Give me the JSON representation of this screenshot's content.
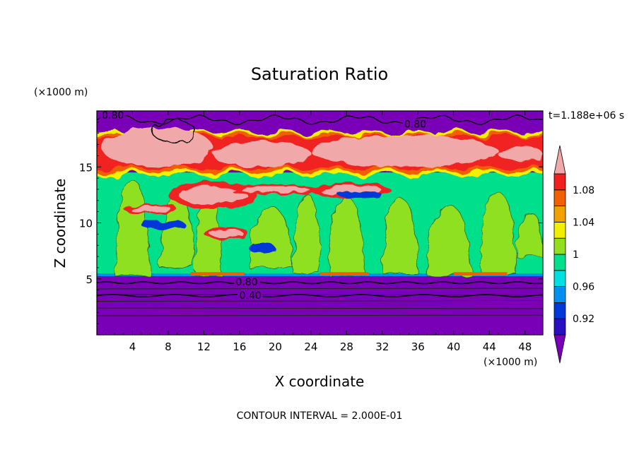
{
  "chart_data": {
    "type": "heatmap",
    "title": "Saturation Ratio",
    "xlabel": "X coordinate",
    "ylabel": "Z coordinate",
    "x_unit": "(×1000 m)",
    "y_unit": "(×1000 m)",
    "time_label": "t=1.188e+06 s",
    "footer": "CONTOUR INTERVAL = 2.000E-01",
    "xlim": [
      0,
      50
    ],
    "ylim": [
      0,
      20
    ],
    "x_ticks": [
      "4",
      "8",
      "12",
      "16",
      "20",
      "24",
      "28",
      "32",
      "36",
      "40",
      "44",
      "48"
    ],
    "y_ticks": [
      "5",
      "10",
      "15"
    ],
    "x_tick_values": [
      4,
      8,
      12,
      16,
      20,
      24,
      28,
      32,
      36,
      40,
      44,
      48
    ],
    "y_tick_values": [
      5,
      10,
      15
    ],
    "colorbar": {
      "labels": [
        "0.92",
        "0.96",
        "1",
        "1.04",
        "1.08"
      ],
      "label_values": [
        0.92,
        0.96,
        1.0,
        1.04,
        1.08
      ],
      "levels": [
        0.9,
        0.92,
        0.94,
        0.96,
        0.98,
        1.0,
        1.02,
        1.04,
        1.06,
        1.08,
        1.1
      ],
      "colors": [
        "#7a00b8",
        "#2a0fc0",
        "#0038d8",
        "#0090f0",
        "#00e0e0",
        "#00e08a",
        "#90e020",
        "#f0f000",
        "#f0a000",
        "#f06000",
        "#f02020",
        "#f0a8a8"
      ],
      "extend": "both"
    },
    "contour_labels": [
      {
        "text": "0.80",
        "x": 1.8,
        "y": 19.5
      },
      {
        "text": "0.80",
        "x": 35.7,
        "y": 18.7
      },
      {
        "text": "0.80",
        "x": 16.8,
        "y": 4.6
      },
      {
        "text": "0.40",
        "x": 17.2,
        "y": 3.4
      }
    ],
    "layers_z": {
      "dry_lower_top": 5.3,
      "cloud_layer_top": 14.5,
      "anvil_band": [
        14.5,
        18.3
      ],
      "dry_upper_bottom": 17.8
    }
  }
}
